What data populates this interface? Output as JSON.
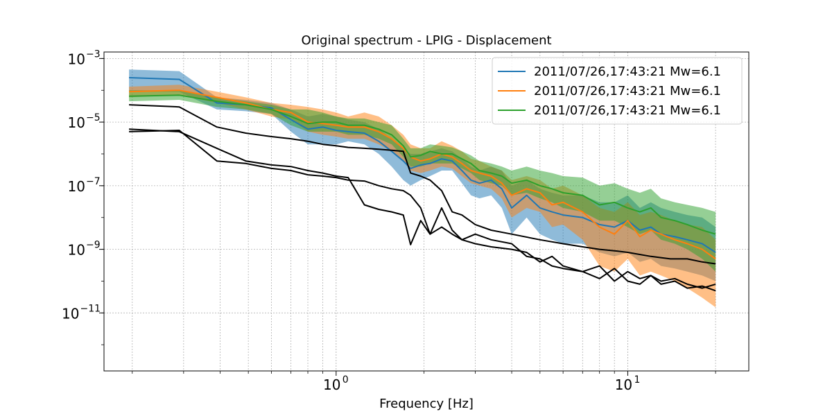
{
  "chart_data": {
    "type": "line",
    "title": "Original spectrum - LPIG - Displacement",
    "xlabel": "Frequency [Hz]",
    "ylabel": "",
    "xscale": "log",
    "yscale": "log",
    "xlim": [
      0.16,
      26
    ],
    "ylim": [
      1.5e-13,
      0.0016
    ],
    "grid": true,
    "legend_position": "top-right",
    "x_ticks": [
      {
        "value": 1,
        "base": "10",
        "exp": "0"
      },
      {
        "value": 10,
        "base": "10",
        "exp": "1"
      }
    ],
    "y_ticks": [
      {
        "value": 0.001,
        "base": "10",
        "exp": "−3"
      },
      {
        "value": 1e-05,
        "base": "10",
        "exp": "−5"
      },
      {
        "value": 1e-07,
        "base": "10",
        "exp": "−7"
      },
      {
        "value": 1e-09,
        "base": "10",
        "exp": "−9"
      },
      {
        "value": 1e-11,
        "base": "10",
        "exp": "−11"
      }
    ],
    "series": [
      {
        "name": "2011/07/26,17:43:21 Mw=6.1",
        "color": "#1f77b4",
        "x": [
          0.195,
          0.29,
          0.39,
          0.49,
          0.6,
          0.7,
          0.8,
          0.9,
          1.0,
          1.1,
          1.25,
          1.4,
          1.55,
          1.7,
          1.8,
          1.95,
          2.1,
          2.3,
          2.5,
          2.7,
          2.9,
          3.1,
          3.4,
          3.7,
          4.0,
          4.5,
          5.0,
          5.5,
          6.0,
          7.0,
          8.0,
          9.0,
          10.0,
          11.0,
          12.0,
          13.0,
          14.5,
          16.0,
          18.0,
          20.0
        ],
        "y": [
          0.00025,
          0.00022,
          4e-05,
          3.5e-05,
          2.8e-05,
          1.2e-05,
          6e-06,
          7e-06,
          5.5e-06,
          5e-06,
          4.5e-06,
          2.5e-06,
          1.2e-06,
          6e-07,
          3.5e-07,
          4.5e-07,
          5e-07,
          7e-07,
          6e-07,
          3e-07,
          1.5e-07,
          1.2e-07,
          1.5e-07,
          8e-08,
          2e-08,
          5e-08,
          2e-08,
          1.5e-08,
          1.2e-08,
          1e-08,
          6e-09,
          5e-09,
          8e-09,
          4e-09,
          5e-09,
          3e-09,
          2.5e-09,
          2e-09,
          1.5e-09,
          8e-10
        ],
        "band_low": [
          9e-05,
          9e-05,
          2.5e-05,
          2.2e-05,
          1.8e-05,
          5e-06,
          2e-06,
          2e-06,
          2e-06,
          2.5e-06,
          2e-06,
          1e-06,
          4e-07,
          1.5e-07,
          1e-07,
          1.5e-07,
          2e-07,
          3e-07,
          3e-07,
          1.2e-07,
          5e-08,
          4e-08,
          5e-08,
          2e-08,
          3e-09,
          1e-08,
          3e-09,
          2e-09,
          1.5e-09,
          1.5e-09,
          8e-10,
          6e-10,
          8e-10,
          4e-10,
          5e-10,
          3e-10,
          2.5e-10,
          2e-10,
          1.5e-10,
          1e-10
        ],
        "band_high": [
          0.00045,
          0.0004,
          6e-05,
          5e-05,
          4e-05,
          2.5e-05,
          1.5e-05,
          1.8e-05,
          1.5e-05,
          1.2e-05,
          1e-05,
          6e-06,
          3e-06,
          1.5e-06,
          1e-06,
          1e-06,
          1.2e-06,
          1.5e-06,
          1.2e-06,
          7e-07,
          4e-07,
          3e-07,
          4e-07,
          3e-07,
          1e-07,
          1.5e-07,
          8e-08,
          6e-08,
          5e-08,
          5e-08,
          3e-08,
          3e-08,
          5e-08,
          2e-08,
          3e-08,
          2e-08,
          1.5e-08,
          1.2e-08,
          1e-08,
          5e-09
        ]
      },
      {
        "name": "2011/07/26,17:43:21 Mw=6.1",
        "color": "#ff7f0e",
        "x": [
          0.195,
          0.29,
          0.39,
          0.49,
          0.6,
          0.7,
          0.8,
          0.9,
          1.0,
          1.1,
          1.25,
          1.4,
          1.55,
          1.7,
          1.8,
          1.95,
          2.1,
          2.3,
          2.5,
          2.7,
          2.9,
          3.1,
          3.4,
          3.7,
          4.0,
          4.5,
          5.0,
          5.5,
          6.0,
          7.0,
          8.0,
          9.0,
          10.0,
          11.0,
          12.0,
          13.0,
          14.5,
          16.0,
          18.0,
          20.0
        ],
        "y": [
          9e-05,
          0.0001,
          6e-05,
          4e-05,
          2.5e-05,
          2e-05,
          1e-05,
          9e-06,
          8e-06,
          7e-06,
          7e-06,
          5e-06,
          3e-06,
          1.5e-06,
          8e-07,
          6e-07,
          7e-07,
          1e-06,
          8e-07,
          5e-07,
          3e-07,
          2.5e-07,
          2e-07,
          1.2e-07,
          5e-08,
          8e-08,
          6e-08,
          2.5e-08,
          3e-08,
          1.5e-08,
          5e-09,
          3e-09,
          8e-09,
          2.5e-09,
          4e-09,
          3e-09,
          2e-09,
          1.5e-09,
          1e-09,
          5e-10
        ],
        "band_low": [
          6e-05,
          7e-05,
          4e-05,
          2.5e-05,
          1.5e-05,
          1.2e-05,
          5e-06,
          4e-06,
          3.5e-06,
          3e-06,
          3e-06,
          2e-06,
          1.2e-06,
          6e-07,
          3e-07,
          2.5e-07,
          3e-07,
          4e-07,
          3.5e-07,
          2e-07,
          1.2e-07,
          1e-07,
          8e-08,
          4e-08,
          1e-08,
          2e-08,
          1.5e-08,
          5e-09,
          6e-09,
          2e-09,
          3e-10,
          2e-10,
          5e-10,
          1.5e-10,
          2e-10,
          1.5e-10,
          1e-10,
          6e-11,
          3e-11,
          1.5e-11
        ],
        "band_high": [
          0.00013,
          0.00015,
          9e-05,
          6e-05,
          4e-05,
          3.5e-05,
          3e-05,
          2.5e-05,
          2e-05,
          1.5e-05,
          2e-05,
          1.5e-05,
          8e-06,
          4e-06,
          2e-06,
          1.5e-06,
          1.5e-06,
          2.5e-06,
          1.8e-06,
          1.2e-06,
          7e-07,
          6e-07,
          4e-07,
          3e-07,
          1.5e-07,
          2e-07,
          1.5e-07,
          8e-08,
          1e-07,
          5e-08,
          2e-08,
          1.5e-08,
          3e-08,
          1.2e-08,
          1.5e-08,
          1.2e-08,
          8e-09,
          6e-09,
          5e-09,
          2e-09
        ]
      },
      {
        "name": "2011/07/26,17:43:21 Mw=6.1",
        "color": "#2ca02c",
        "x": [
          0.195,
          0.29,
          0.39,
          0.49,
          0.6,
          0.7,
          0.8,
          0.9,
          1.0,
          1.1,
          1.25,
          1.4,
          1.55,
          1.7,
          1.8,
          1.95,
          2.1,
          2.3,
          2.5,
          2.7,
          2.9,
          3.1,
          3.4,
          3.7,
          4.0,
          4.5,
          5.0,
          5.5,
          6.0,
          7.0,
          8.0,
          9.0,
          10.0,
          11.0,
          12.0,
          13.0,
          14.5,
          16.0,
          18.0,
          20.0
        ],
        "y": [
          6.5e-05,
          7e-05,
          4.5e-05,
          3.5e-05,
          2.5e-05,
          1.5e-05,
          9e-06,
          1e-05,
          1e-05,
          8e-06,
          8e-06,
          6e-06,
          4e-06,
          1.8e-06,
          8e-07,
          9e-07,
          1.2e-06,
          1e-06,
          1e-06,
          7e-07,
          5e-07,
          3e-07,
          2.5e-07,
          2e-07,
          1.2e-07,
          1.5e-07,
          1e-07,
          8e-08,
          6e-08,
          5e-08,
          2.5e-08,
          3e-08,
          2e-08,
          1.5e-08,
          2e-08,
          1e-08,
          8e-09,
          6e-09,
          4e-09,
          3e-09
        ],
        "band_low": [
          4.5e-05,
          5e-05,
          3e-05,
          2.5e-05,
          1.8e-05,
          8e-06,
          5e-06,
          5e-06,
          5e-06,
          4e-06,
          4e-06,
          3e-06,
          2e-06,
          8e-07,
          4e-07,
          4e-07,
          5e-07,
          5e-07,
          5e-07,
          3.5e-07,
          2.5e-07,
          1.5e-07,
          1.2e-07,
          1e-07,
          5e-08,
          6e-08,
          4e-08,
          3e-08,
          2e-08,
          1.5e-08,
          8e-09,
          8e-09,
          5e-09,
          3e-09,
          4e-09,
          2e-09,
          1.5e-09,
          1e-09,
          5e-10,
          2e-10
        ],
        "band_high": [
          0.0001,
          0.0001,
          6e-05,
          4.5e-05,
          3.5e-05,
          2.5e-05,
          2.5e-05,
          2e-05,
          1.5e-05,
          1.3e-05,
          1.3e-05,
          1e-05,
          8e-06,
          3e-06,
          1.5e-06,
          1.5e-06,
          2e-06,
          1.8e-06,
          1.6e-06,
          1.2e-06,
          9e-07,
          6e-07,
          5e-07,
          4e-07,
          3e-07,
          4e-07,
          3e-07,
          2.5e-07,
          2e-07,
          1.8e-07,
          1e-07,
          1.2e-07,
          8e-08,
          6e-08,
          8e-08,
          4e-08,
          3e-08,
          2.5e-08,
          2e-08,
          1.5e-08
        ]
      },
      {
        "name": "",
        "color": "#000000",
        "x": [
          0.195,
          0.29,
          0.39,
          0.49,
          0.6,
          0.7,
          0.8,
          0.9,
          1.0,
          1.1,
          1.25,
          1.4,
          1.55,
          1.7,
          1.8,
          1.95,
          2.1,
          2.3,
          2.5,
          2.7,
          3.0,
          3.4,
          4.0,
          5.0,
          6.0,
          7.0,
          8.0,
          9.0,
          10.0,
          12.0,
          14.0,
          16.0,
          18.0,
          20.0
        ],
        "y": [
          3.5e-05,
          3e-05,
          7e-06,
          4.5e-06,
          3.5e-06,
          3e-06,
          2.5e-06,
          2e-06,
          1.8e-06,
          1.6e-06,
          1.5e-06,
          1.4e-06,
          1.3e-06,
          1.2e-06,
          2.5e-07,
          2e-07,
          1.5e-07,
          7e-08,
          1.5e-08,
          1.2e-08,
          6e-09,
          4e-09,
          3e-09,
          2e-09,
          1.5e-09,
          1.2e-09,
          1e-09,
          9e-10,
          8e-10,
          6e-10,
          5e-10,
          5e-10,
          4e-10,
          3.5e-10
        ]
      },
      {
        "name": "",
        "color": "#000000",
        "x": [
          0.195,
          0.29,
          0.39,
          0.49,
          0.6,
          0.7,
          0.8,
          0.9,
          1.0,
          1.1,
          1.25,
          1.4,
          1.55,
          1.7,
          1.8,
          1.95,
          2.1,
          2.3,
          2.5,
          2.7,
          3.0,
          3.4,
          4.0,
          4.5,
          5.0,
          5.5,
          6.0,
          7.0,
          8.0,
          9.0,
          10.0,
          11.0,
          12.0,
          13.0,
          14.5,
          16.0,
          18.0,
          20.0
        ],
        "y": [
          6e-06,
          5e-06,
          1.5e-06,
          6e-07,
          4.5e-07,
          4e-07,
          3e-07,
          2.5e-07,
          2e-07,
          1.8e-07,
          2.5e-08,
          1.8e-08,
          1.5e-08,
          1.2e-08,
          1.4e-09,
          8e-09,
          3e-09,
          5e-09,
          3e-09,
          2e-09,
          1.5e-09,
          1.2e-09,
          1e-09,
          8e-10,
          4e-10,
          6e-10,
          3e-10,
          2e-10,
          3e-10,
          1e-10,
          2e-10,
          1.2e-10,
          1.5e-10,
          1e-10,
          1.2e-10,
          8e-11,
          6e-11,
          8e-11
        ]
      },
      {
        "name": "",
        "color": "#000000",
        "x": [
          0.195,
          0.29,
          0.39,
          0.49,
          0.6,
          0.7,
          0.8,
          0.9,
          1.0,
          1.1,
          1.25,
          1.4,
          1.55,
          1.7,
          1.8,
          1.95,
          2.1,
          2.3,
          2.5,
          2.7,
          3.0,
          3.4,
          4.0,
          4.5,
          5.0,
          5.5,
          6.0,
          7.0,
          8.0,
          9.0,
          10.0,
          11.0,
          12.0,
          13.0,
          14.5,
          16.0,
          18.0,
          20.0
        ],
        "y": [
          5e-06,
          5.5e-06,
          6e-07,
          5e-07,
          3.5e-07,
          3e-07,
          2.2e-07,
          2e-07,
          1.8e-07,
          1.5e-07,
          1.4e-07,
          1e-07,
          8e-08,
          7e-08,
          5e-08,
          2e-08,
          3e-09,
          2e-08,
          4e-09,
          2e-09,
          3e-09,
          2e-09,
          1.5e-09,
          6e-10,
          5e-10,
          3e-10,
          2.5e-10,
          2e-10,
          1.2e-10,
          2.5e-10,
          1e-10,
          8e-11,
          1.5e-10,
          8e-11,
          1e-10,
          6e-11,
          7e-11,
          5e-11
        ]
      }
    ]
  }
}
